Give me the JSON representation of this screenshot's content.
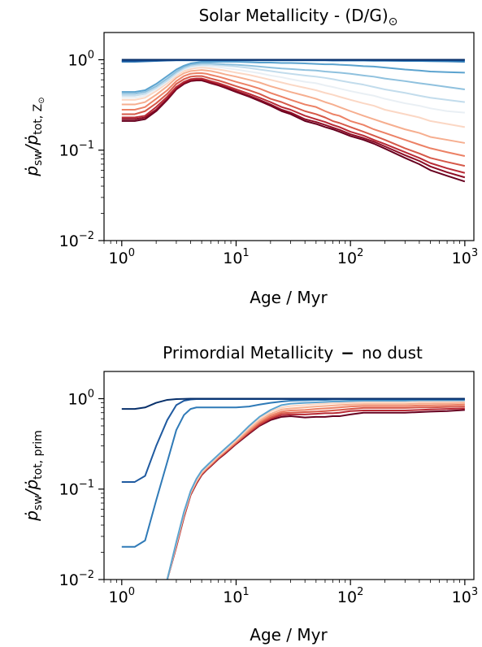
{
  "chart_data": [
    {
      "type": "line",
      "title": "Solar Metallicity - (D/G)",
      "title_sub": "⊙",
      "xlabel": "Age / Myr",
      "ylabel_parts": {
        "main": "ṗ",
        "sub1": "sw",
        "sep": "/ṗ",
        "sub2": "tot, Z",
        "sub3": "⊙"
      },
      "x_scale": "log",
      "y_scale": "log",
      "xlim": [
        0.7,
        1200
      ],
      "ylim": [
        0.01,
        2.0
      ],
      "x_ticks": [
        {
          "value": 1,
          "base": "10",
          "exp": "0"
        },
        {
          "value": 10,
          "base": "10",
          "exp": "1"
        },
        {
          "value": 100,
          "base": "10",
          "exp": "2"
        },
        {
          "value": 1000,
          "base": "10",
          "exp": "3"
        }
      ],
      "y_ticks": [
        {
          "value": 0.01,
          "base": "10",
          "exp": "−2"
        },
        {
          "value": 0.1,
          "base": "10",
          "exp": "−1"
        },
        {
          "value": 1,
          "base": "10",
          "exp": "0"
        }
      ],
      "x": [
        1,
        1.3,
        1.6,
        2,
        2.5,
        3,
        3.5,
        4,
        4.5,
        5,
        5.5,
        6,
        7,
        8,
        10,
        13,
        16,
        20,
        25,
        30,
        40,
        50,
        60,
        70,
        80,
        100,
        130,
        160,
        200,
        300,
        400,
        500,
        700,
        1000
      ],
      "series": [
        {
          "color": "#08306b",
          "values": [
            1.0,
            1.0,
            1.0,
            1.0,
            1.0,
            1.0,
            1.0,
            1.0,
            1.0,
            1.0,
            1.0,
            1.0,
            1.0,
            1.0,
            1.0,
            1.0,
            1.0,
            1.0,
            1.0,
            1.0,
            1.0,
            1.0,
            1.0,
            1.0,
            1.0,
            1.0,
            1.0,
            1.0,
            1.0,
            1.0,
            1.0,
            1.0,
            1.0,
            1.0
          ]
        },
        {
          "color": "#1f5aa0",
          "values": [
            0.97,
            0.97,
            0.975,
            0.98,
            0.985,
            0.99,
            0.99,
            0.99,
            0.99,
            0.99,
            0.99,
            0.99,
            0.99,
            0.99,
            0.99,
            0.99,
            0.99,
            0.99,
            0.99,
            0.99,
            0.99,
            0.99,
            0.99,
            0.99,
            0.99,
            0.99,
            0.99,
            0.99,
            0.99,
            0.99,
            0.99,
            0.99,
            0.99,
            0.99
          ]
        },
        {
          "color": "#2f7ab7",
          "values": [
            0.95,
            0.95,
            0.96,
            0.97,
            0.98,
            0.985,
            0.985,
            0.985,
            0.985,
            0.985,
            0.985,
            0.985,
            0.985,
            0.985,
            0.985,
            0.985,
            0.985,
            0.985,
            0.985,
            0.985,
            0.985,
            0.985,
            0.985,
            0.98,
            0.98,
            0.98,
            0.98,
            0.975,
            0.975,
            0.97,
            0.97,
            0.965,
            0.96,
            0.95
          ]
        },
        {
          "color": "#5ba3cf",
          "values": [
            0.44,
            0.44,
            0.46,
            0.54,
            0.66,
            0.78,
            0.86,
            0.91,
            0.93,
            0.95,
            0.95,
            0.95,
            0.95,
            0.95,
            0.95,
            0.94,
            0.93,
            0.93,
            0.92,
            0.92,
            0.91,
            0.9,
            0.89,
            0.89,
            0.88,
            0.87,
            0.85,
            0.84,
            0.82,
            0.78,
            0.76,
            0.74,
            0.73,
            0.72
          ]
        },
        {
          "color": "#8fc1de",
          "values": [
            0.42,
            0.42,
            0.44,
            0.51,
            0.62,
            0.74,
            0.83,
            0.88,
            0.9,
            0.91,
            0.91,
            0.91,
            0.9,
            0.89,
            0.88,
            0.86,
            0.84,
            0.82,
            0.8,
            0.79,
            0.77,
            0.76,
            0.74,
            0.73,
            0.72,
            0.7,
            0.67,
            0.65,
            0.62,
            0.58,
            0.55,
            0.53,
            0.5,
            0.47
          ]
        },
        {
          "color": "#c2dcec",
          "values": [
            0.4,
            0.4,
            0.42,
            0.49,
            0.59,
            0.71,
            0.8,
            0.85,
            0.87,
            0.88,
            0.88,
            0.88,
            0.87,
            0.86,
            0.84,
            0.81,
            0.78,
            0.75,
            0.72,
            0.7,
            0.67,
            0.65,
            0.63,
            0.61,
            0.59,
            0.56,
            0.53,
            0.5,
            0.47,
            0.43,
            0.4,
            0.38,
            0.36,
            0.34
          ]
        },
        {
          "color": "#e9eff4",
          "values": [
            0.38,
            0.38,
            0.4,
            0.47,
            0.57,
            0.69,
            0.78,
            0.82,
            0.84,
            0.85,
            0.85,
            0.84,
            0.83,
            0.81,
            0.78,
            0.74,
            0.71,
            0.67,
            0.64,
            0.61,
            0.57,
            0.55,
            0.52,
            0.5,
            0.48,
            0.45,
            0.42,
            0.4,
            0.37,
            0.33,
            0.31,
            0.29,
            0.27,
            0.26
          ]
        },
        {
          "color": "#fbd7c4",
          "values": [
            0.36,
            0.36,
            0.38,
            0.45,
            0.55,
            0.67,
            0.75,
            0.79,
            0.81,
            0.82,
            0.81,
            0.8,
            0.78,
            0.76,
            0.72,
            0.68,
            0.64,
            0.6,
            0.56,
            0.53,
            0.49,
            0.46,
            0.43,
            0.41,
            0.39,
            0.36,
            0.33,
            0.31,
            0.28,
            0.25,
            0.23,
            0.21,
            0.195,
            0.18
          ]
        },
        {
          "color": "#f6ae8f",
          "values": [
            0.32,
            0.32,
            0.34,
            0.41,
            0.51,
            0.63,
            0.71,
            0.75,
            0.76,
            0.77,
            0.76,
            0.75,
            0.72,
            0.69,
            0.65,
            0.6,
            0.56,
            0.51,
            0.47,
            0.44,
            0.4,
            0.37,
            0.34,
            0.32,
            0.3,
            0.27,
            0.24,
            0.22,
            0.2,
            0.17,
            0.155,
            0.14,
            0.13,
            0.12
          ]
        },
        {
          "color": "#ec8165",
          "values": [
            0.28,
            0.28,
            0.3,
            0.37,
            0.46,
            0.58,
            0.66,
            0.7,
            0.71,
            0.71,
            0.7,
            0.68,
            0.65,
            0.62,
            0.57,
            0.52,
            0.48,
            0.43,
            0.39,
            0.36,
            0.32,
            0.3,
            0.27,
            0.25,
            0.24,
            0.21,
            0.19,
            0.17,
            0.155,
            0.13,
            0.115,
            0.105,
            0.095,
            0.086
          ]
        },
        {
          "color": "#d65848",
          "values": [
            0.25,
            0.25,
            0.27,
            0.33,
            0.42,
            0.54,
            0.61,
            0.65,
            0.66,
            0.66,
            0.64,
            0.62,
            0.59,
            0.56,
            0.51,
            0.46,
            0.42,
            0.37,
            0.34,
            0.31,
            0.27,
            0.25,
            0.23,
            0.21,
            0.2,
            0.18,
            0.16,
            0.145,
            0.13,
            0.105,
            0.092,
            0.082,
            0.074,
            0.067
          ]
        },
        {
          "color": "#b82a35",
          "values": [
            0.23,
            0.23,
            0.24,
            0.3,
            0.39,
            0.5,
            0.57,
            0.61,
            0.62,
            0.62,
            0.6,
            0.58,
            0.55,
            0.52,
            0.47,
            0.42,
            0.38,
            0.34,
            0.3,
            0.28,
            0.24,
            0.22,
            0.205,
            0.19,
            0.18,
            0.16,
            0.145,
            0.13,
            0.117,
            0.095,
            0.082,
            0.072,
            0.063,
            0.056
          ]
        },
        {
          "color": "#8c0c25",
          "values": [
            0.22,
            0.22,
            0.23,
            0.28,
            0.37,
            0.48,
            0.55,
            0.59,
            0.6,
            0.6,
            0.58,
            0.56,
            0.53,
            0.5,
            0.45,
            0.4,
            0.36,
            0.32,
            0.28,
            0.26,
            0.22,
            0.205,
            0.19,
            0.178,
            0.168,
            0.15,
            0.136,
            0.124,
            0.11,
            0.088,
            0.076,
            0.066,
            0.057,
            0.05
          ]
        },
        {
          "color": "#67001f",
          "values": [
            0.21,
            0.21,
            0.22,
            0.27,
            0.36,
            0.47,
            0.54,
            0.58,
            0.59,
            0.59,
            0.57,
            0.55,
            0.52,
            0.49,
            0.44,
            0.39,
            0.35,
            0.31,
            0.27,
            0.25,
            0.21,
            0.195,
            0.18,
            0.17,
            0.16,
            0.143,
            0.13,
            0.118,
            0.104,
            0.082,
            0.07,
            0.06,
            0.052,
            0.045
          ]
        }
      ]
    },
    {
      "type": "line",
      "title": "Primordial Metallicity",
      "title_dash": "−",
      "title_rest": "no dust",
      "xlabel": "Age / Myr",
      "ylabel_parts": {
        "main": "ṗ",
        "sub1": "sw",
        "sep": "/ṗ",
        "sub2": "tot, prim",
        "sub3": ""
      },
      "x_scale": "log",
      "y_scale": "log",
      "xlim": [
        0.7,
        1200
      ],
      "ylim": [
        0.01,
        2.0
      ],
      "x_ticks": [
        {
          "value": 1,
          "base": "10",
          "exp": "0"
        },
        {
          "value": 10,
          "base": "10",
          "exp": "1"
        },
        {
          "value": 100,
          "base": "10",
          "exp": "2"
        },
        {
          "value": 1000,
          "base": "10",
          "exp": "3"
        }
      ],
      "y_ticks": [
        {
          "value": 0.01,
          "base": "10",
          "exp": "−2"
        },
        {
          "value": 0.1,
          "base": "10",
          "exp": "−1"
        },
        {
          "value": 1,
          "base": "10",
          "exp": "0"
        }
      ],
      "x": [
        1,
        1.3,
        1.6,
        2,
        2.5,
        3,
        3.5,
        4,
        4.5,
        5,
        5.5,
        6,
        7,
        8,
        10,
        13,
        16,
        20,
        25,
        30,
        40,
        50,
        60,
        70,
        80,
        100,
        130,
        160,
        200,
        300,
        400,
        500,
        700,
        1000
      ],
      "series": [
        {
          "color": "#08306b",
          "values": [
            0.77,
            0.77,
            0.8,
            0.9,
            0.97,
            0.99,
            0.995,
            1.0,
            1.0,
            1.0,
            1.0,
            1.0,
            1.0,
            1.0,
            1.0,
            1.0,
            1.0,
            1.0,
            1.0,
            1.0,
            1.0,
            1.0,
            1.0,
            1.0,
            1.0,
            1.0,
            1.0,
            1.0,
            1.0,
            1.0,
            1.0,
            1.0,
            1.0,
            1.0
          ]
        },
        {
          "color": "#1f5aa0",
          "values": [
            0.12,
            0.12,
            0.14,
            0.3,
            0.58,
            0.85,
            0.95,
            0.98,
            0.99,
            0.99,
            0.99,
            0.99,
            0.99,
            0.99,
            0.99,
            0.99,
            0.99,
            0.99,
            0.99,
            0.99,
            0.99,
            0.99,
            0.99,
            0.99,
            0.99,
            0.99,
            0.99,
            0.99,
            0.99,
            0.99,
            0.99,
            0.99,
            0.99,
            0.99
          ]
        },
        {
          "color": "#2f7ab7",
          "values": [
            0.023,
            0.023,
            0.027,
            0.075,
            0.2,
            0.45,
            0.66,
            0.77,
            0.8,
            0.8,
            0.8,
            0.8,
            0.8,
            0.8,
            0.8,
            0.82,
            0.86,
            0.9,
            0.93,
            0.95,
            0.96,
            0.97,
            0.97,
            0.98,
            0.98,
            0.98,
            0.98,
            0.98,
            0.98,
            0.98,
            0.98,
            0.98,
            0.98,
            0.98
          ]
        },
        {
          "color": "#5ba3cf",
          "values": [
            null,
            null,
            null,
            null,
            0.01,
            0.026,
            0.056,
            0.095,
            0.13,
            0.16,
            0.18,
            0.2,
            0.24,
            0.28,
            0.36,
            0.5,
            0.63,
            0.75,
            0.85,
            0.88,
            0.9,
            0.91,
            0.92,
            0.93,
            0.93,
            0.94,
            0.95,
            0.95,
            0.95,
            0.95,
            0.96,
            0.96,
            0.96,
            0.96
          ]
        },
        {
          "color": "#fbd7c4",
          "values": [
            null,
            null,
            null,
            null,
            0.01,
            0.025,
            0.054,
            0.093,
            0.125,
            0.155,
            0.175,
            0.195,
            0.235,
            0.27,
            0.35,
            0.48,
            0.6,
            0.72,
            0.8,
            0.83,
            0.85,
            0.87,
            0.88,
            0.89,
            0.89,
            0.9,
            0.91,
            0.91,
            0.91,
            0.91,
            0.92,
            0.92,
            0.92,
            0.93
          ]
        },
        {
          "color": "#f6ae8f",
          "values": [
            null,
            null,
            null,
            null,
            0.01,
            0.025,
            0.053,
            0.091,
            0.123,
            0.152,
            0.172,
            0.19,
            0.23,
            0.265,
            0.34,
            0.46,
            0.57,
            0.68,
            0.76,
            0.78,
            0.8,
            0.82,
            0.83,
            0.84,
            0.85,
            0.86,
            0.87,
            0.87,
            0.87,
            0.87,
            0.88,
            0.88,
            0.89,
            0.9
          ]
        },
        {
          "color": "#ec8165",
          "values": [
            null,
            null,
            null,
            null,
            0.01,
            0.024,
            0.052,
            0.09,
            0.121,
            0.149,
            0.169,
            0.187,
            0.225,
            0.26,
            0.33,
            0.44,
            0.55,
            0.65,
            0.72,
            0.74,
            0.75,
            0.77,
            0.78,
            0.79,
            0.8,
            0.82,
            0.83,
            0.83,
            0.83,
            0.83,
            0.84,
            0.84,
            0.85,
            0.86
          ]
        },
        {
          "color": "#d65848",
          "values": [
            null,
            null,
            null,
            null,
            0.01,
            0.024,
            0.051,
            0.088,
            0.119,
            0.147,
            0.166,
            0.184,
            0.222,
            0.255,
            0.325,
            0.43,
            0.53,
            0.62,
            0.69,
            0.7,
            0.71,
            0.72,
            0.73,
            0.74,
            0.75,
            0.77,
            0.79,
            0.79,
            0.79,
            0.79,
            0.8,
            0.8,
            0.81,
            0.82
          ]
        },
        {
          "color": "#b82a35",
          "values": [
            null,
            null,
            null,
            null,
            0.01,
            0.023,
            0.05,
            0.087,
            0.117,
            0.145,
            0.164,
            0.181,
            0.218,
            0.25,
            0.32,
            0.42,
            0.51,
            0.6,
            0.66,
            0.67,
            0.67,
            0.68,
            0.69,
            0.69,
            0.7,
            0.73,
            0.74,
            0.74,
            0.74,
            0.74,
            0.75,
            0.76,
            0.77,
            0.78
          ]
        },
        {
          "color": "#67001f",
          "values": [
            null,
            null,
            null,
            null,
            0.01,
            0.023,
            0.049,
            0.086,
            0.115,
            0.143,
            0.162,
            0.179,
            0.215,
            0.246,
            0.315,
            0.41,
            0.5,
            0.58,
            0.63,
            0.64,
            0.62,
            0.63,
            0.63,
            0.64,
            0.64,
            0.67,
            0.7,
            0.7,
            0.7,
            0.7,
            0.71,
            0.72,
            0.73,
            0.75
          ]
        }
      ]
    }
  ]
}
